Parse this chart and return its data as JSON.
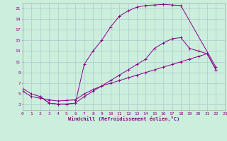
{
  "xlabel": "Windchill (Refroidissement éolien,°C)",
  "bg_color": "#cceedd",
  "grid_color": "#aacccc",
  "line_color": "#880088",
  "spine_color": "#aaaaaa",
  "xmin": 0,
  "xmax": 23,
  "ymin": 2,
  "ymax": 22,
  "yticks": [
    3,
    5,
    7,
    9,
    11,
    13,
    15,
    17,
    19,
    21
  ],
  "xticks": [
    0,
    1,
    2,
    3,
    4,
    5,
    6,
    7,
    8,
    9,
    10,
    11,
    12,
    13,
    14,
    15,
    16,
    17,
    18,
    19,
    20,
    21,
    22,
    23
  ],
  "lines": [
    {
      "x": [
        0,
        1,
        2,
        3,
        4,
        5,
        6,
        7,
        8,
        9,
        10,
        11,
        12,
        13,
        14,
        15,
        16,
        17,
        18,
        22
      ],
      "y": [
        6,
        5,
        4.5,
        3.3,
        3.1,
        3.1,
        3.3,
        10.5,
        13,
        15,
        17.5,
        19.5,
        20.5,
        21.2,
        21.5,
        21.6,
        21.7,
        21.6,
        21.5,
        10
      ]
    },
    {
      "x": [
        2,
        3,
        4,
        5,
        6,
        7,
        8,
        9,
        10,
        11,
        12,
        13,
        14,
        15,
        16,
        17,
        18,
        19,
        20,
        21,
        22
      ],
      "y": [
        4.5,
        3.3,
        3.1,
        3.1,
        3.3,
        4.5,
        5.5,
        6.5,
        7.5,
        8.5,
        9.5,
        10.5,
        11.5,
        13.5,
        14.5,
        15.3,
        15.5,
        13.5,
        13,
        12.5,
        9.5
      ]
    },
    {
      "x": [
        0,
        1,
        2,
        3,
        4,
        5,
        6,
        7,
        8,
        9,
        10,
        11,
        12,
        13,
        14,
        15,
        16,
        17,
        18,
        19,
        20,
        21,
        22
      ],
      "y": [
        5.5,
        4.5,
        4.2,
        3.9,
        3.7,
        3.8,
        3.9,
        5.0,
        5.8,
        6.5,
        7.0,
        7.5,
        8.0,
        8.5,
        9.0,
        9.5,
        10.0,
        10.5,
        11.0,
        11.5,
        12.0,
        12.5,
        9.5
      ]
    }
  ]
}
